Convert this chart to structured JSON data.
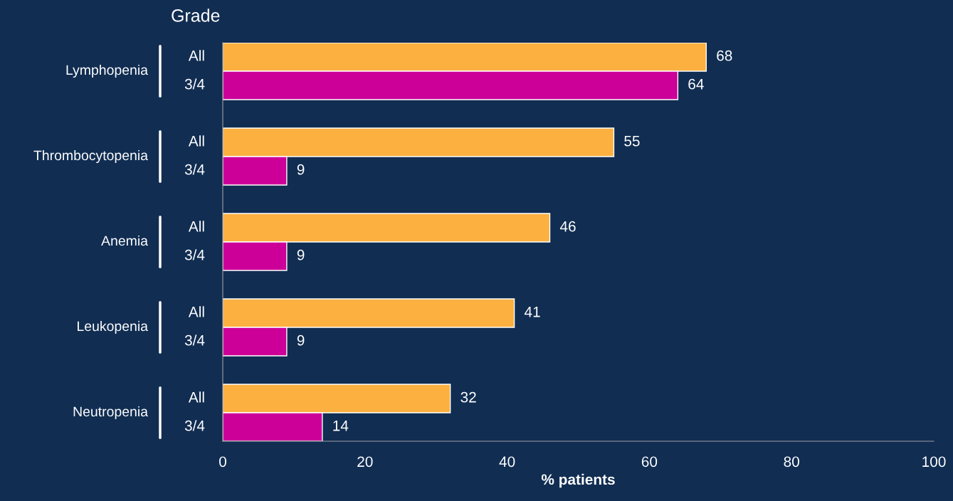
{
  "chart_data": {
    "type": "bar",
    "orientation": "horizontal",
    "legend_title": "Grade",
    "xlabel": "% patients",
    "categories": [
      "Lymphopenia",
      "Thrombocytopenia",
      "Anemia",
      "Leukopenia",
      "Neutropenia"
    ],
    "series": [
      {
        "name": "All",
        "color": "#fbb040",
        "values": [
          68,
          55,
          46,
          41,
          32
        ]
      },
      {
        "name": "3/4",
        "color": "#cc0099",
        "values": [
          64,
          9,
          9,
          9,
          14
        ]
      }
    ],
    "xlim": [
      0,
      100
    ],
    "xticks": [
      0,
      20,
      40,
      60,
      80,
      100
    ],
    "data_labels": true,
    "grid": false,
    "legend": false
  }
}
